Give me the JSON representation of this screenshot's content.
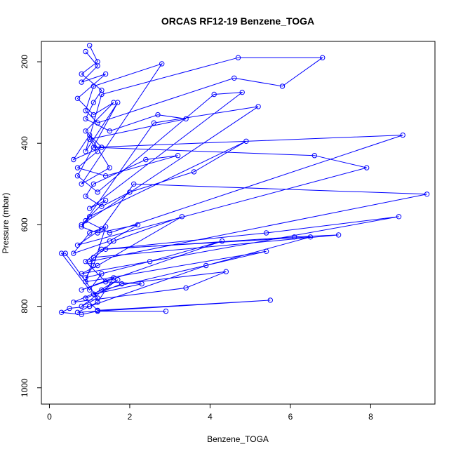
{
  "chart_data": {
    "type": "line",
    "title": "ORCAS RF12-19 Benzene_TOGA",
    "xlabel": "Benzene_TOGA",
    "ylabel": "Pressure (mbar)",
    "xlim": [
      -0.2,
      9.6
    ],
    "ylim": [
      1040,
      150
    ],
    "y_reversed": true,
    "grid": false,
    "marker": "open-circle",
    "line_color": "#0000ff",
    "x_ticks": [
      0,
      2,
      4,
      6,
      8
    ],
    "y_ticks": [
      200,
      400,
      600,
      800,
      1000
    ],
    "series": [
      {
        "x": [
          0.9,
          1.2,
          0.8,
          1.4,
          0.7,
          1.1,
          1.6,
          0.9,
          1.3,
          0.6,
          1.0,
          1.5,
          0.8,
          2.8,
          1.1,
          0.9,
          1.2,
          4.6,
          5.8,
          6.8,
          4.7,
          1.3,
          0.9,
          1.7,
          0.7,
          1.2,
          4.1,
          4.8,
          1.0,
          1.4,
          0.8,
          5.2,
          2.6,
          0.9,
          1.5,
          8.8,
          1.1,
          6.6,
          7.9,
          0.7,
          1.3,
          2.1,
          9.4,
          1.0,
          1.6,
          3.3,
          1.2,
          0.8,
          8.7,
          5.4,
          1.4,
          6.1,
          7.2,
          1.1,
          0.9,
          5.4,
          1.3,
          0.6,
          3.4,
          4.4,
          1.8,
          0.9,
          1.2,
          5.5,
          0.7,
          1.0,
          0.5,
          0.3,
          0.8,
          1.2,
          2.9
        ],
        "y": [
          175,
          210,
          250,
          230,
          290,
          330,
          300,
          370,
          410,
          440,
          380,
          460,
          500,
          205,
          260,
          320,
          350,
          240,
          260,
          190,
          190,
          280,
          420,
          300,
          480,
          520,
          280,
          275,
          560,
          540,
          600,
          310,
          350,
          590,
          620,
          380,
          410,
          430,
          460,
          650,
          610,
          500,
          525,
          690,
          640,
          580,
          700,
          720,
          580,
          620,
          660,
          630,
          625,
          680,
          740,
          665,
          760,
          790,
          755,
          715,
          745,
          780,
          810,
          785,
          815,
          800,
          805,
          815,
          820,
          812,
          812
        ]
      },
      {
        "x": [
          1.0,
          1.2,
          0.8,
          1.3,
          1.1,
          0.9,
          1.5,
          2.7,
          3.4,
          1.0,
          1.2,
          0.7,
          1.4,
          3.2,
          2.4,
          1.1,
          0.9,
          1.3,
          2.0,
          3.6,
          4.9,
          1.0,
          0.8,
          1.2,
          2.2,
          1.5,
          0.6,
          1.0,
          1.4,
          1.1,
          0.9,
          2.5,
          4.3,
          0.8,
          1.6,
          1.2,
          1.0,
          3.9,
          6.5,
          1.3,
          0.9,
          1.4,
          2.3,
          1.1,
          1.7,
          0.8,
          1.2,
          0.4,
          0.3,
          1.0,
          1.3
        ],
        "y": [
          160,
          200,
          230,
          270,
          300,
          340,
          370,
          330,
          340,
          390,
          420,
          460,
          480,
          430,
          440,
          500,
          530,
          555,
          520,
          470,
          395,
          580,
          605,
          620,
          600,
          640,
          670,
          620,
          605,
          700,
          730,
          690,
          640,
          760,
          730,
          790,
          800,
          700,
          630,
          660,
          690,
          740,
          745,
          770,
          735,
          800,
          780,
          670,
          670,
          760,
          720
        ]
      }
    ]
  }
}
